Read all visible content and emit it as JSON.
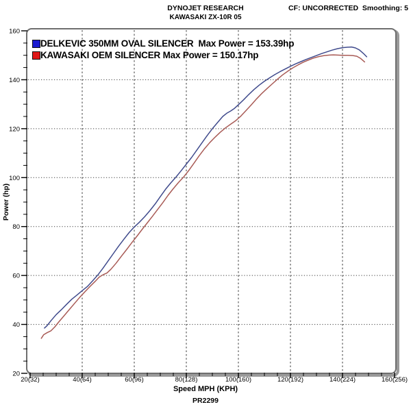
{
  "header": {
    "line1": "DYNOJET RESEARCH",
    "line2": "KAWASAKI ZX-10R 05",
    "correction": "CF: UNCORRECTED  Smoothing: 5"
  },
  "axes": {
    "y_label": "Power (hp)",
    "x_label": "Speed MPH (KPH)"
  },
  "footer": {
    "run_id": "PR2299"
  },
  "legend": [
    {
      "swatch": "#1a1ad0",
      "label": "DELKEVIC 350MM OVAL SILENCER  Max Power = 153.39hp"
    },
    {
      "swatch": "#e01818",
      "label": "KAWASAKI OEM SILENCER Max Power = 150.17hp"
    }
  ],
  "chart_data": {
    "type": "line",
    "title": "DYNOJET RESEARCH — KAWASAKI ZX-10R 05",
    "xlabel": "Speed MPH (KPH)",
    "ylabel": "Power (hp)",
    "xlim": [
      20,
      160
    ],
    "ylim": [
      20,
      160
    ],
    "x_ticks": [
      {
        "value": 20,
        "label": "20(32)"
      },
      {
        "value": 40,
        "label": "40(64)"
      },
      {
        "value": 60,
        "label": "60(96)"
      },
      {
        "value": 80,
        "label": "80(128)"
      },
      {
        "value": 100,
        "label": "100(160)"
      },
      {
        "value": 120,
        "label": "120(192)"
      },
      {
        "value": 140,
        "label": "140(224)"
      },
      {
        "value": 160,
        "label": "160(256)"
      }
    ],
    "y_ticks": [
      20,
      40,
      60,
      80,
      100,
      120,
      140,
      160
    ],
    "minor_tick_step": 5,
    "grid": "major gridlines: vertical dashed, horizontal dotted",
    "legend_position": "top-left inside plot",
    "series": [
      {
        "name": "DELKEVIC 350MM OVAL SILENCER",
        "max_power_hp": 153.39,
        "color": "#3f4a8c",
        "points": [
          [
            25.5,
            38.5
          ],
          [
            26.5,
            39.5
          ],
          [
            28,
            41.5
          ],
          [
            30,
            44
          ],
          [
            32,
            46
          ],
          [
            34,
            48.2
          ],
          [
            36,
            50.3
          ],
          [
            38,
            52
          ],
          [
            40,
            53.8
          ],
          [
            42,
            55.5
          ],
          [
            44,
            57.8
          ],
          [
            46,
            60.2
          ],
          [
            48,
            63
          ],
          [
            50,
            66
          ],
          [
            52,
            69
          ],
          [
            54,
            72
          ],
          [
            56,
            74.8
          ],
          [
            58,
            77.5
          ],
          [
            60,
            79.8
          ],
          [
            62,
            81.8
          ],
          [
            64,
            84
          ],
          [
            66,
            86.5
          ],
          [
            68,
            89.2
          ],
          [
            70,
            92.2
          ],
          [
            72,
            95.2
          ],
          [
            74,
            97.8
          ],
          [
            76,
            100.2
          ],
          [
            78,
            102.8
          ],
          [
            80,
            105.5
          ],
          [
            82,
            108.2
          ],
          [
            84,
            111.2
          ],
          [
            86,
            114.2
          ],
          [
            88,
            117.2
          ],
          [
            90,
            120
          ],
          [
            92,
            122.5
          ],
          [
            94,
            125
          ],
          [
            95.5,
            126.3
          ],
          [
            97,
            127.2
          ],
          [
            98.5,
            128.3
          ],
          [
            100,
            129.8
          ],
          [
            102,
            131.8
          ],
          [
            104,
            134
          ],
          [
            106,
            136
          ],
          [
            108,
            137.8
          ],
          [
            110,
            139.4
          ],
          [
            112,
            140.8
          ],
          [
            114,
            142.1
          ],
          [
            116,
            143.3
          ],
          [
            118,
            144.4
          ],
          [
            120,
            145.5
          ],
          [
            122,
            146.5
          ],
          [
            124,
            147.4
          ],
          [
            126,
            148.3
          ],
          [
            128,
            149.1
          ],
          [
            130,
            149.9
          ],
          [
            132,
            150.7
          ],
          [
            134,
            151.4
          ],
          [
            136,
            152.1
          ],
          [
            138,
            152.7
          ],
          [
            140,
            153.1
          ],
          [
            142,
            153.3
          ],
          [
            143.5,
            153.39
          ],
          [
            145,
            153
          ],
          [
            146.5,
            152.2
          ],
          [
            148,
            150.8
          ],
          [
            149.3,
            149.4
          ]
        ]
      },
      {
        "name": "KAWASAKI OEM SILENCER",
        "max_power_hp": 150.17,
        "color": "#a85a55",
        "points": [
          [
            24.3,
            34.3
          ],
          [
            25.2,
            35.8
          ],
          [
            26.5,
            36.6
          ],
          [
            28,
            37.4
          ],
          [
            29.5,
            39
          ],
          [
            31,
            41
          ],
          [
            33,
            43.5
          ],
          [
            35,
            46
          ],
          [
            37,
            48.5
          ],
          [
            39,
            51
          ],
          [
            41,
            53.3
          ],
          [
            43,
            55.5
          ],
          [
            45,
            57.6
          ],
          [
            46.5,
            59.3
          ],
          [
            48,
            60.3
          ],
          [
            49.5,
            61
          ],
          [
            51,
            62.5
          ],
          [
            53,
            65
          ],
          [
            55,
            67.8
          ],
          [
            57,
            70.5
          ],
          [
            59,
            73.3
          ],
          [
            61,
            76
          ],
          [
            63,
            78.8
          ],
          [
            65,
            81.5
          ],
          [
            67,
            84.2
          ],
          [
            69,
            87
          ],
          [
            71,
            89.8
          ],
          [
            73,
            92.8
          ],
          [
            75,
            95.5
          ],
          [
            77,
            98
          ],
          [
            79,
            100.3
          ],
          [
            81,
            103
          ],
          [
            83,
            106
          ],
          [
            85,
            109
          ],
          [
            87,
            111.8
          ],
          [
            89,
            114.3
          ],
          [
            91,
            116.5
          ],
          [
            93,
            118.5
          ],
          [
            95,
            120.3
          ],
          [
            97,
            121.8
          ],
          [
            99,
            123.3
          ],
          [
            101,
            125.2
          ],
          [
            103,
            127.5
          ],
          [
            105,
            129.8
          ],
          [
            107,
            132.2
          ],
          [
            109,
            134.4
          ],
          [
            111,
            136.4
          ],
          [
            113,
            138.3
          ],
          [
            115,
            140.2
          ],
          [
            117,
            142
          ],
          [
            119,
            143.5
          ],
          [
            121,
            144.9
          ],
          [
            123,
            146.1
          ],
          [
            125,
            147.2
          ],
          [
            127,
            148.1
          ],
          [
            129,
            148.9
          ],
          [
            131,
            149.5
          ],
          [
            133,
            149.9
          ],
          [
            135,
            150.1
          ],
          [
            136.5,
            150.17
          ],
          [
            138,
            150.1
          ],
          [
            140,
            150
          ],
          [
            142,
            150
          ],
          [
            144,
            149.9
          ],
          [
            145.5,
            149.6
          ],
          [
            147,
            148.7
          ],
          [
            148.5,
            147.3
          ]
        ]
      }
    ]
  }
}
